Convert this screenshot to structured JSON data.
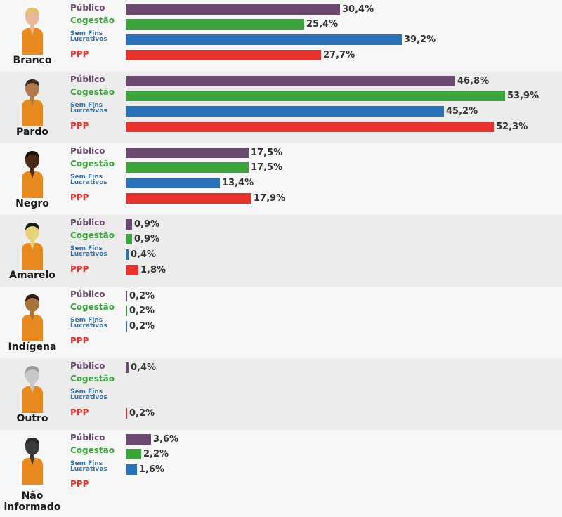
{
  "colors": {
    "publico": "#6b4a6f",
    "cogestao": "#3aa53a",
    "sem_fins": "#2873b9",
    "ppp": "#e8322d",
    "shirt": "#e8891e"
  },
  "series_labels": {
    "publico": "Público",
    "cogestao": "Cogestão",
    "sem_fins_line1": "Sem Fins",
    "sem_fins_line2": "Lucrativos",
    "ppp": "PPP"
  },
  "chart_data": {
    "type": "bar",
    "orientation": "horizontal",
    "series": [
      "Público",
      "Cogestão",
      "Sem Fins Lucrativos",
      "PPP"
    ],
    "max_value": 53.9,
    "groups": [
      {
        "name": "Branco",
        "label_lines": [
          "Branco"
        ],
        "skin": "#e8b89a",
        "hair": "#e2c45a",
        "values": [
          30.4,
          25.4,
          39.2,
          27.7
        ],
        "labels": [
          "30,4%",
          "25,4%",
          "39,2%",
          "27,7%"
        ]
      },
      {
        "name": "Pardo",
        "label_lines": [
          "Pardo"
        ],
        "skin": "#b07a4e",
        "hair": "#3a2a20",
        "values": [
          46.8,
          53.9,
          45.2,
          52.3
        ],
        "labels": [
          "46,8%",
          "53,9%",
          "45,2%",
          "52,3%"
        ]
      },
      {
        "name": "Negro",
        "label_lines": [
          "Negro"
        ],
        "skin": "#4a2b18",
        "hair": "#1a1410",
        "values": [
          17.5,
          17.5,
          13.4,
          17.9
        ],
        "labels": [
          "17,5%",
          "17,5%",
          "13,4%",
          "17,9%"
        ]
      },
      {
        "name": "Amarelo",
        "label_lines": [
          "Amarelo"
        ],
        "skin": "#e6d27a",
        "hair": "#1a1a1a",
        "values": [
          0.9,
          0.9,
          0.4,
          1.8
        ],
        "labels": [
          "0,9%",
          "0,9%",
          "0,4%",
          "1,8%"
        ]
      },
      {
        "name": "Indígena",
        "label_lines": [
          "Indígena"
        ],
        "skin": "#a8743e",
        "hair": "#2a1a10",
        "values": [
          0.2,
          0.2,
          0.2,
          null
        ],
        "labels": [
          "0,2%",
          "0,2%",
          "0,2%",
          ""
        ]
      },
      {
        "name": "Outro",
        "label_lines": [
          "Outro"
        ],
        "skin": "#c8c8c8",
        "hair": "#9a9a9a",
        "values": [
          0.4,
          null,
          null,
          0.2
        ],
        "labels": [
          "0,4%",
          "",
          "",
          "0,2%"
        ]
      },
      {
        "name": "Não informado",
        "label_lines": [
          "Não",
          "informado"
        ],
        "skin": "#3a3a3a",
        "hair": "#2a2a2a",
        "values": [
          3.6,
          2.2,
          1.6,
          null
        ],
        "labels": [
          "3,6%",
          "2,2%",
          "1,6%",
          ""
        ]
      }
    ]
  }
}
